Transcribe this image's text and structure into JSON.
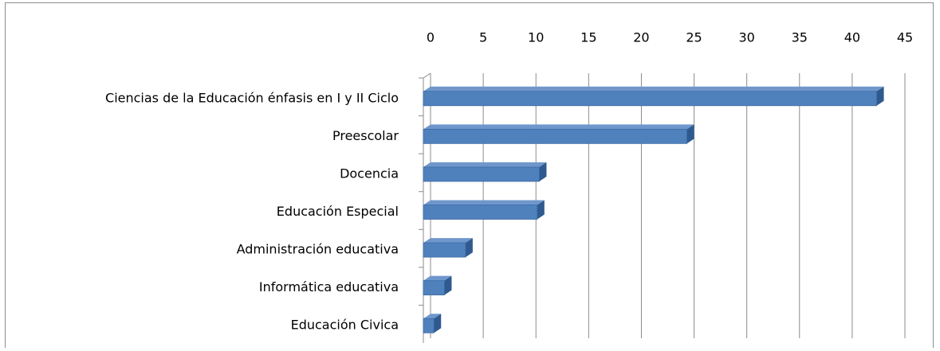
{
  "chart_data": {
    "type": "bar",
    "orientation": "horizontal",
    "categories": [
      "Ciencias de la Educación énfasis en I y II Ciclo",
      "Preescolar",
      "Docencia",
      "Educación Especial",
      "Administración educativa",
      "Informática educativa",
      "Educación Civica"
    ],
    "values": [
      43,
      25,
      11,
      10.8,
      4,
      2,
      1
    ],
    "color": "#4f81bd",
    "xlim": [
      0,
      45
    ],
    "xticks": [
      0,
      5,
      10,
      15,
      20,
      25,
      30,
      35,
      40,
      45
    ],
    "grid": true
  }
}
